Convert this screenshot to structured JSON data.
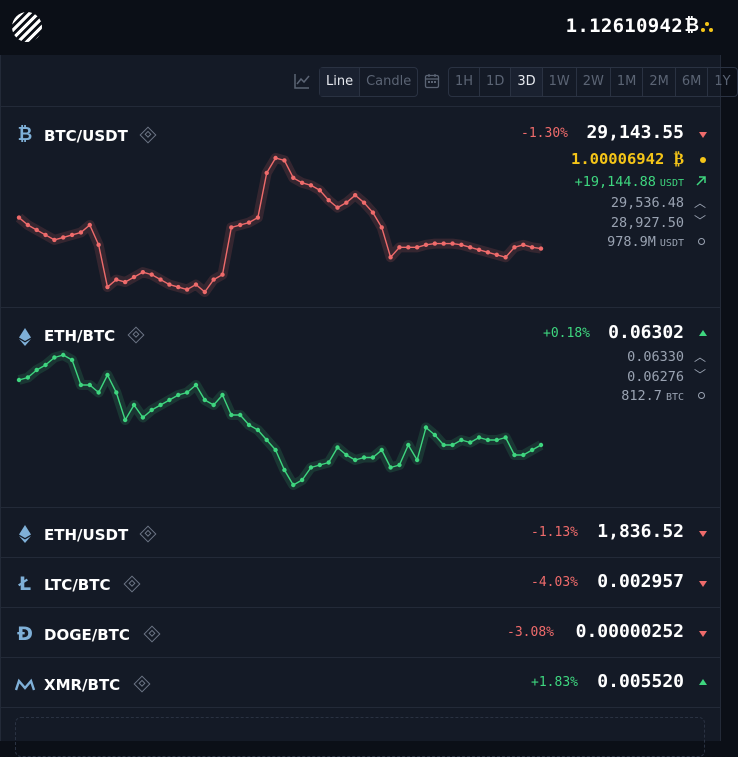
{
  "header": {
    "balance": "1.12610942",
    "balance_unit": "₿",
    "logo": "striped-circle-logo",
    "menu_icon": "three-dots-icon"
  },
  "toolbar": {
    "chart_icon": "line-chart-icon",
    "calendar_icon": "calendar-icon",
    "chart_types": [
      "Line",
      "Candle"
    ],
    "active_chart_type": "Line",
    "ranges": [
      "1H",
      "1D",
      "3D",
      "1W",
      "2W",
      "1M",
      "2M",
      "6M",
      "1Y"
    ],
    "active_range": "3D"
  },
  "colors": {
    "negative": "#ef6b6b",
    "positive": "#3ed67f",
    "gold": "#f5c518",
    "background": "#141a26"
  },
  "btc": {
    "pair": "BTC/USDT",
    "icon": "bitcoin-icon",
    "change": "-1.30%",
    "price": "29,143.55",
    "holding": "1.00006942",
    "holding_unit": "₿",
    "value": "+19,144.88",
    "value_unit": "USDT",
    "high": "29,536.48",
    "low": "28,927.50",
    "volume": "978.9M",
    "volume_unit": "USDT"
  },
  "eth_btc": {
    "pair": "ETH/BTC",
    "icon": "ethereum-icon",
    "change": "+0.18%",
    "price": "0.06302",
    "high": "0.06330",
    "low": "0.06276",
    "volume": "812.7",
    "volume_unit": "BTC"
  },
  "watchlist": [
    {
      "pair": "ETH/USDT",
      "icon": "ethereum-icon",
      "change": "-1.13%",
      "price": "1,836.52",
      "direction": "down"
    },
    {
      "pair": "LTC/BTC",
      "icon": "litecoin-icon",
      "change": "-4.03%",
      "price": "0.002957",
      "direction": "down"
    },
    {
      "pair": "DOGE/BTC",
      "icon": "dogecoin-icon",
      "change": "-3.08%",
      "price": "0.00000252",
      "direction": "down"
    },
    {
      "pair": "XMR/BTC",
      "icon": "monero-icon",
      "change": "+1.83%",
      "price": "0.005520",
      "direction": "up"
    }
  ],
  "chart_data": [
    {
      "type": "line",
      "series": [
        {
          "values": [
            29270,
            29240,
            29220,
            29200,
            29180,
            29190,
            29200,
            29210,
            29240,
            29160,
            28990,
            29020,
            29010,
            29030,
            29050,
            29040,
            29020,
            29000,
            28990,
            28980,
            29000,
            28970,
            29020,
            29040,
            29230,
            29240,
            29250,
            29270,
            29450,
            29510,
            29500,
            29430,
            29410,
            29400,
            29380,
            29340,
            29310,
            29330,
            29360,
            29330,
            29290,
            29230,
            29110,
            29150,
            29150,
            29150,
            29160,
            29165,
            29165,
            29165,
            29160,
            29150,
            29140,
            29130,
            29120,
            29110,
            29150,
            29160,
            29150,
            29145
          ]
        }
      ]
    },
    {
      "type": "line",
      "series": [
        {
          "values": [
            0.0632,
            0.06321,
            0.06324,
            0.06326,
            0.06329,
            0.0633,
            0.06328,
            0.06318,
            0.06318,
            0.06315,
            0.06322,
            0.06315,
            0.06304,
            0.0631,
            0.06305,
            0.06308,
            0.0631,
            0.06312,
            0.06314,
            0.06315,
            0.06318,
            0.06312,
            0.0631,
            0.06314,
            0.06306,
            0.06306,
            0.06302,
            0.063,
            0.06296,
            0.06292,
            0.06284,
            0.06278,
            0.0628,
            0.06285,
            0.06286,
            0.06287,
            0.06293,
            0.0629,
            0.06288,
            0.06289,
            0.06289,
            0.06292,
            0.06285,
            0.06286,
            0.06294,
            0.06288,
            0.06301,
            0.06298,
            0.06294,
            0.06294,
            0.06296,
            0.06295,
            0.06297,
            0.06296,
            0.06296,
            0.06297,
            0.0629,
            0.0629,
            0.06292,
            0.06294
          ]
        }
      ]
    }
  ]
}
